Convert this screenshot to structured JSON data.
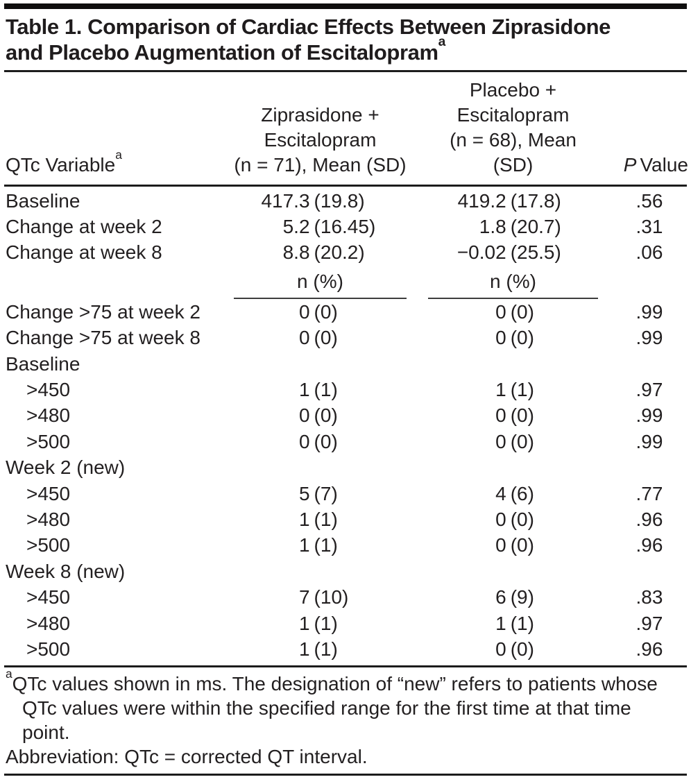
{
  "title": {
    "line1": "Table 1. Comparison of Cardiac Effects Between Ziprasidone",
    "line2": "and Placebo Augmentation of Escitalopram",
    "superscript": "a"
  },
  "header": {
    "col1": {
      "label": "QTc Variable",
      "superscript": "a"
    },
    "col2_lines": [
      "Ziprasidone +",
      "Escitalopram",
      "(n = 71), Mean (SD)"
    ],
    "col3_lines": [
      "Placebo +",
      "Escitalopram",
      "(n = 68), Mean (SD)"
    ],
    "col4": {
      "italic": "P",
      "rest": "Value"
    }
  },
  "table": {
    "subheader": {
      "col2": "n (%)",
      "col3": "n (%)"
    },
    "mean_rows": [
      {
        "label": "Baseline",
        "v1": [
          "417.3",
          "(19.8)"
        ],
        "v2": [
          "419.2",
          "(17.8)"
        ],
        "p": ".56"
      },
      {
        "label": "Change at week 2",
        "v1": [
          "5.2",
          "(16.45)"
        ],
        "v2": [
          "1.8",
          "(20.7)"
        ],
        "p": ".31"
      },
      {
        "label": "Change at week 8",
        "v1": [
          "8.8",
          "(20.2)"
        ],
        "v2": [
          "−0.02",
          "(25.5)"
        ],
        "p": ".06"
      }
    ],
    "count_rows": [
      {
        "label": "Change >75 at week 2",
        "v1": [
          "0",
          "(0)"
        ],
        "v2": [
          "0",
          "(0)"
        ],
        "p": ".99"
      },
      {
        "label": "Change >75 at week 8",
        "v1": [
          "0",
          "(0)"
        ],
        "v2": [
          "0",
          "(0)"
        ],
        "p": ".99"
      },
      {
        "label": "Baseline",
        "section": true
      },
      {
        "label": ">450",
        "indent": true,
        "v1": [
          "1",
          "(1)"
        ],
        "v2": [
          "1",
          "(1)"
        ],
        "p": ".97"
      },
      {
        "label": ">480",
        "indent": true,
        "v1": [
          "0",
          "(0)"
        ],
        "v2": [
          "0",
          "(0)"
        ],
        "p": ".99"
      },
      {
        "label": ">500",
        "indent": true,
        "v1": [
          "0",
          "(0)"
        ],
        "v2": [
          "0",
          "(0)"
        ],
        "p": ".99"
      },
      {
        "label": "Week 2 (new)",
        "section": true
      },
      {
        "label": ">450",
        "indent": true,
        "v1": [
          "5",
          "(7)"
        ],
        "v2": [
          "4",
          "(6)"
        ],
        "p": ".77"
      },
      {
        "label": ">480",
        "indent": true,
        "v1": [
          "1",
          "(1)"
        ],
        "v2": [
          "0",
          "(0)"
        ],
        "p": ".96"
      },
      {
        "label": ">500",
        "indent": true,
        "v1": [
          "1",
          "(1)"
        ],
        "v2": [
          "0",
          "(0)"
        ],
        "p": ".96"
      },
      {
        "label": "Week 8 (new)",
        "section": true
      },
      {
        "label": ">450",
        "indent": true,
        "v1": [
          "7",
          "(10)"
        ],
        "v2": [
          "6",
          "(9)"
        ],
        "p": ".83"
      },
      {
        "label": ">480",
        "indent": true,
        "v1": [
          "1",
          "(1)"
        ],
        "v2": [
          "1",
          "(1)"
        ],
        "p": ".97"
      },
      {
        "label": ">500",
        "indent": true,
        "v1": [
          "1",
          "(1)"
        ],
        "v2": [
          "0",
          "(0)"
        ],
        "p": ".96"
      }
    ]
  },
  "footnotes": {
    "a_sup": "a",
    "a_lines": [
      "QTc values shown in ms. The designation of “new” refers to patients whose",
      "QTc values were within the specified range for the first time at that time",
      "point."
    ],
    "abbreviation": "Abbreviation: QTc = corrected QT interval."
  },
  "colors": {
    "text": "#221f20",
    "rule": "#1c1c1c",
    "background": "#ffffff"
  }
}
